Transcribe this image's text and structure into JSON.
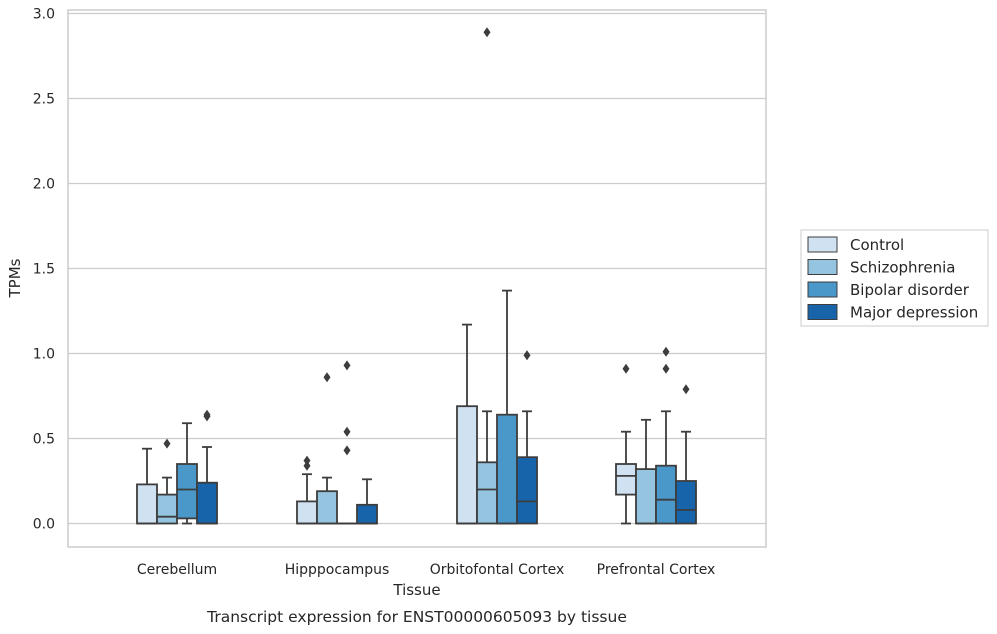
{
  "chart_data": {
    "type": "box",
    "title": "",
    "caption": "Transcript expression for ENST00000605093 by tissue",
    "xlabel": "Tissue",
    "ylabel": "TPMs",
    "ylim": [
      -0.14,
      3.04
    ],
    "yticks": [
      "0.0",
      "0.5",
      "1.0",
      "1.5",
      "2.0",
      "2.5",
      "3.0"
    ],
    "grid": "horizontal",
    "legend_position": "right",
    "categories": [
      "Cerebellum",
      "Hipppocampus",
      "Orbitofontal Cortex",
      "Prefrontal Cortex"
    ],
    "series": [
      {
        "name": "Control",
        "color": "#d0e1f2",
        "boxes": [
          {
            "min": 0.0,
            "q1": 0.0,
            "median": 0.0,
            "q3": 0.23,
            "max": 0.44,
            "outliers": []
          },
          {
            "min": 0.0,
            "q1": 0.0,
            "median": 0.0,
            "q3": 0.13,
            "max": 0.29,
            "outliers": [
              0.34,
              0.37
            ]
          },
          {
            "min": 0.0,
            "q1": 0.0,
            "median": 0.0,
            "q3": 0.69,
            "max": 1.17,
            "outliers": []
          },
          {
            "min": 0.0,
            "q1": 0.17,
            "median": 0.28,
            "q3": 0.35,
            "max": 0.54,
            "outliers": [
              0.91
            ]
          }
        ]
      },
      {
        "name": "Schizophrenia",
        "color": "#94c4df",
        "boxes": [
          {
            "min": 0.0,
            "q1": 0.0,
            "median": 0.04,
            "q3": 0.17,
            "max": 0.27,
            "outliers": [
              0.47
            ]
          },
          {
            "min": 0.0,
            "q1": 0.0,
            "median": 0.0,
            "q3": 0.19,
            "max": 0.27,
            "outliers": [
              0.86
            ]
          },
          {
            "min": 0.0,
            "q1": 0.0,
            "median": 0.2,
            "q3": 0.36,
            "max": 0.66,
            "outliers": [
              2.89
            ]
          },
          {
            "min": 0.0,
            "q1": 0.0,
            "median": 0.0,
            "q3": 0.32,
            "max": 0.61,
            "outliers": []
          }
        ]
      },
      {
        "name": "Bipolar disorder",
        "color": "#4a98c9",
        "boxes": [
          {
            "min": 0.0,
            "q1": 0.03,
            "median": 0.2,
            "q3": 0.35,
            "max": 0.59,
            "outliers": []
          },
          {
            "min": 0.0,
            "q1": 0.0,
            "median": 0.0,
            "q3": 0.0,
            "max": 0.0,
            "outliers": [
              0.43,
              0.54,
              0.93
            ]
          },
          {
            "min": 0.0,
            "q1": 0.0,
            "median": 0.0,
            "q3": 0.64,
            "max": 1.37,
            "outliers": []
          },
          {
            "min": 0.0,
            "q1": 0.0,
            "median": 0.14,
            "q3": 0.34,
            "max": 0.66,
            "outliers": [
              0.91,
              1.01
            ]
          }
        ]
      },
      {
        "name": "Major depression",
        "color": "#1764ab",
        "boxes": [
          {
            "min": 0.0,
            "q1": 0.0,
            "median": 0.0,
            "q3": 0.24,
            "max": 0.45,
            "outliers": [
              0.63,
              0.64
            ]
          },
          {
            "min": 0.0,
            "q1": 0.0,
            "median": 0.0,
            "q3": 0.11,
            "max": 0.26,
            "outliers": []
          },
          {
            "min": 0.0,
            "q1": 0.0,
            "median": 0.13,
            "q3": 0.39,
            "max": 0.66,
            "outliers": [
              0.99
            ]
          },
          {
            "min": 0.0,
            "q1": 0.0,
            "median": 0.08,
            "q3": 0.25,
            "max": 0.54,
            "outliers": [
              0.79
            ]
          }
        ]
      }
    ]
  }
}
